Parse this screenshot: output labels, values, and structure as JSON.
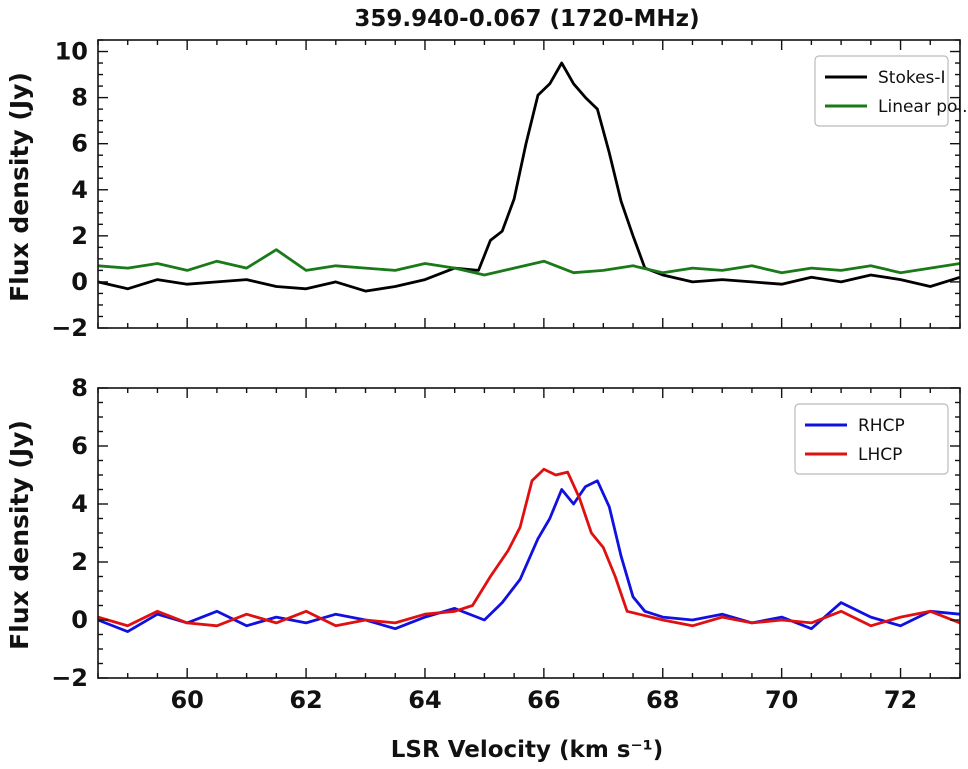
{
  "chart_data": [
    {
      "type": "line",
      "title": "359.940-0.067 (1720-MHz)",
      "xlabel": "",
      "ylabel": "Flux density (Jy)",
      "xlim": [
        58.5,
        73.0
      ],
      "ylim": [
        -2,
        10.5
      ],
      "yticks": [
        -2,
        0,
        2,
        4,
        6,
        8,
        10
      ],
      "ytick_labels": [
        "−2",
        "0",
        "2",
        "4",
        "6",
        "8",
        "10"
      ],
      "grid": false,
      "legend": "top-right",
      "colors": {
        "Stokes-I": "#000000",
        "Linear pol.": "#1a7a1a"
      },
      "series": [
        {
          "name": "Stokes-I",
          "x": [
            58.5,
            59.0,
            59.5,
            60.0,
            60.5,
            61.0,
            61.5,
            62.0,
            62.5,
            63.0,
            63.5,
            64.0,
            64.5,
            64.9,
            65.1,
            65.3,
            65.5,
            65.7,
            65.9,
            66.1,
            66.3,
            66.5,
            66.7,
            66.9,
            67.1,
            67.3,
            67.5,
            67.7,
            68.0,
            68.5,
            69.0,
            69.5,
            70.0,
            70.5,
            71.0,
            71.5,
            72.0,
            72.5,
            73.0
          ],
          "values": [
            0.0,
            -0.3,
            0.1,
            -0.1,
            0.0,
            0.1,
            -0.2,
            -0.3,
            0.0,
            -0.4,
            -0.2,
            0.1,
            0.6,
            0.5,
            1.8,
            2.2,
            3.6,
            6.0,
            8.1,
            8.6,
            9.5,
            8.6,
            8.0,
            7.5,
            5.6,
            3.5,
            2.0,
            0.6,
            0.3,
            0.0,
            0.1,
            0.0,
            -0.1,
            0.2,
            0.0,
            0.3,
            0.1,
            -0.2,
            0.2
          ]
        },
        {
          "name": "Linear pol.",
          "x": [
            58.5,
            59.0,
            59.5,
            60.0,
            60.5,
            61.0,
            61.5,
            62.0,
            62.5,
            63.0,
            63.5,
            64.0,
            64.5,
            65.0,
            65.5,
            66.0,
            66.5,
            67.0,
            67.5,
            68.0,
            68.5,
            69.0,
            69.5,
            70.0,
            70.5,
            71.0,
            71.5,
            72.0,
            72.5,
            73.0
          ],
          "values": [
            0.7,
            0.6,
            0.8,
            0.5,
            0.9,
            0.6,
            1.4,
            0.5,
            0.7,
            0.6,
            0.5,
            0.8,
            0.6,
            0.3,
            0.6,
            0.9,
            0.4,
            0.5,
            0.7,
            0.4,
            0.6,
            0.5,
            0.7,
            0.4,
            0.6,
            0.5,
            0.7,
            0.4,
            0.6,
            0.8
          ]
        }
      ]
    },
    {
      "type": "line",
      "title": "",
      "xlabel": "LSR Velocity (km s⁻¹)",
      "ylabel": "Flux density (Jy)",
      "xlim": [
        58.5,
        73.0
      ],
      "ylim": [
        -2,
        8
      ],
      "xticks": [
        60,
        62,
        64,
        66,
        68,
        70,
        72
      ],
      "xtick_labels": [
        "60",
        "62",
        "64",
        "66",
        "68",
        "70",
        "72"
      ],
      "yticks": [
        -2,
        0,
        2,
        4,
        6,
        8
      ],
      "ytick_labels": [
        "−2",
        "0",
        "2",
        "4",
        "6",
        "8"
      ],
      "grid": false,
      "legend": "top-right",
      "colors": {
        "RHCP": "#1010e0",
        "LHCP": "#e01010"
      },
      "series": [
        {
          "name": "RHCP",
          "x": [
            58.5,
            59.0,
            59.5,
            60.0,
            60.5,
            61.0,
            61.5,
            62.0,
            62.5,
            63.0,
            63.5,
            64.0,
            64.5,
            65.0,
            65.3,
            65.6,
            65.9,
            66.1,
            66.3,
            66.5,
            66.7,
            66.9,
            67.1,
            67.3,
            67.5,
            67.7,
            68.0,
            68.5,
            69.0,
            69.5,
            70.0,
            70.5,
            71.0,
            71.5,
            72.0,
            72.5,
            73.0
          ],
          "values": [
            0.0,
            -0.4,
            0.2,
            -0.1,
            0.3,
            -0.2,
            0.1,
            -0.1,
            0.2,
            0.0,
            -0.3,
            0.1,
            0.4,
            0.0,
            0.6,
            1.4,
            2.8,
            3.5,
            4.5,
            4.0,
            4.6,
            4.8,
            3.9,
            2.2,
            0.8,
            0.3,
            0.1,
            0.0,
            0.2,
            -0.1,
            0.1,
            -0.3,
            0.6,
            0.1,
            -0.2,
            0.3,
            0.2
          ]
        },
        {
          "name": "LHCP",
          "x": [
            58.5,
            59.0,
            59.5,
            60.0,
            60.5,
            61.0,
            61.5,
            62.0,
            62.5,
            63.0,
            63.5,
            64.0,
            64.5,
            64.8,
            65.1,
            65.4,
            65.6,
            65.8,
            66.0,
            66.2,
            66.4,
            66.6,
            66.8,
            67.0,
            67.2,
            67.4,
            67.6,
            68.0,
            68.5,
            69.0,
            69.5,
            70.0,
            70.5,
            71.0,
            71.5,
            72.0,
            72.5,
            73.0
          ],
          "values": [
            0.1,
            -0.2,
            0.3,
            -0.1,
            -0.2,
            0.2,
            -0.1,
            0.3,
            -0.2,
            0.0,
            -0.1,
            0.2,
            0.3,
            0.5,
            1.5,
            2.4,
            3.2,
            4.8,
            5.2,
            5.0,
            5.1,
            4.2,
            3.0,
            2.5,
            1.5,
            0.3,
            0.2,
            0.0,
            -0.2,
            0.1,
            -0.1,
            0.0,
            -0.1,
            0.3,
            -0.2,
            0.1,
            0.3,
            -0.1
          ]
        }
      ]
    }
  ]
}
